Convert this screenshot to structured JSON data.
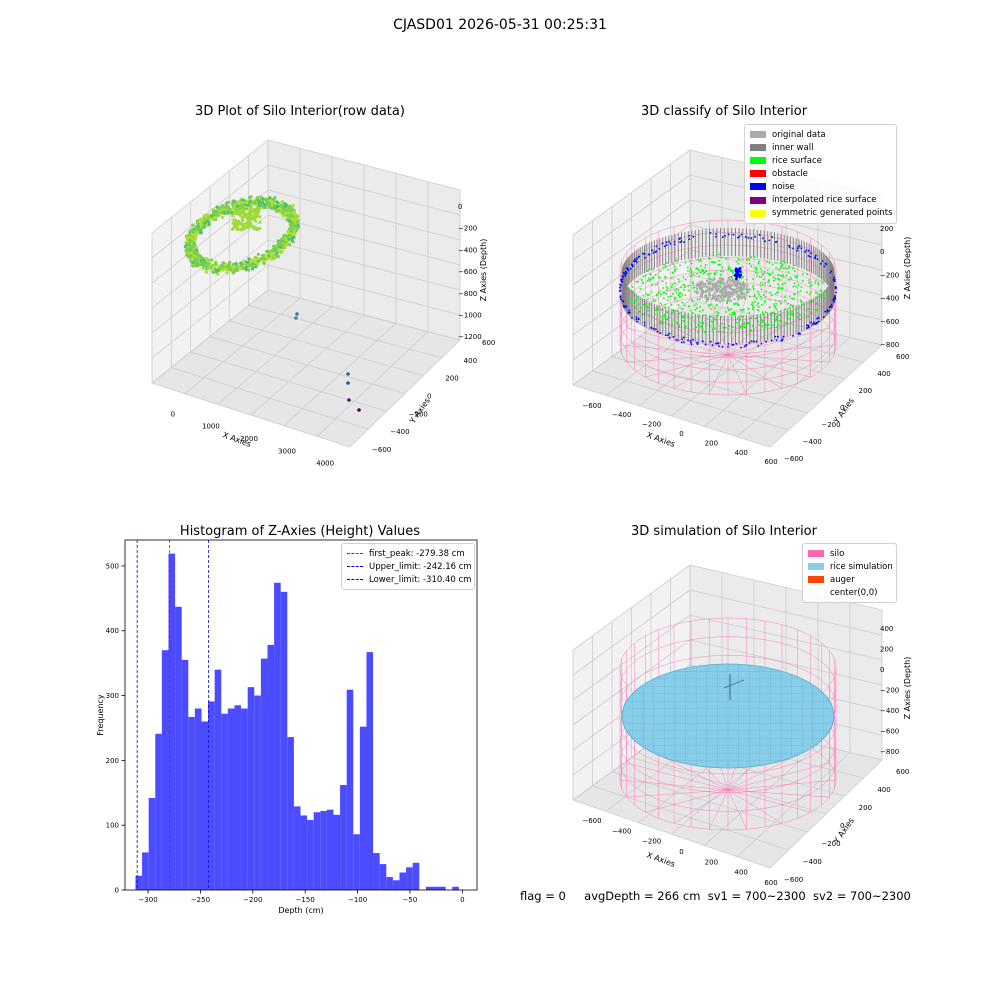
{
  "figure": {
    "suptitle": "CJASD01 2026-05-31 00:25:31",
    "status": {
      "flag": "flag = 0",
      "avg_depth": "avgDepth = 266 cm",
      "sv1": "sv1 = 700~2300",
      "sv2": "sv2 = 700~2300"
    }
  },
  "colors": {
    "histogram_bar": "#4b4bff",
    "first_peak_line": "#ff0000",
    "limit_line": "#0000cc",
    "silo_pink": "#ff69b4",
    "rice_sim": "#87ceeb",
    "auger": "#ff4500",
    "rice_surface": "#00ff00",
    "noise": "#0000ff",
    "original": "#aaaaaa",
    "inner_wall": "#808080"
  },
  "chart_data": [
    {
      "type": "scatter",
      "projection": "3d",
      "title": "3D Plot of Silo Interior(row data)",
      "xlabel": "X Axies",
      "ylabel": "Y Axies",
      "zlabel": "Z Axies (Depth)",
      "x_ticks": [
        "0",
        "1000",
        "2000",
        "3000",
        "4000"
      ],
      "y_ticks": [
        "600",
        "400",
        "200",
        "0",
        "−200",
        "−400",
        "−600"
      ],
      "z_ticks": [
        "0",
        "−200",
        "−400",
        "−600",
        "−800",
        "−1000",
        "−1200"
      ],
      "grid": true,
      "colormap": "viridis"
    },
    {
      "type": "scatter",
      "projection": "3d",
      "title": "3D classify of Silo Interior",
      "xlabel": "X Axies",
      "ylabel": "Y Axies",
      "zlabel": "Z Axies (Depth)",
      "x_ticks": [
        "−600",
        "−400",
        "−200",
        "0",
        "200",
        "400",
        "600"
      ],
      "y_ticks": [
        "600",
        "400",
        "200",
        "0",
        "−200",
        "−400",
        "−600"
      ],
      "z_ticks": [
        "200",
        "0",
        "−200",
        "−400",
        "−600",
        "−800"
      ],
      "legend": [
        {
          "name": "original data",
          "color": "#aaaaaa"
        },
        {
          "name": "inner wall",
          "color": "#808080"
        },
        {
          "name": "rice surface",
          "color": "#00ff00"
        },
        {
          "name": "obstacle",
          "color": "#ff0000"
        },
        {
          "name": "noise",
          "color": "#0000ff"
        },
        {
          "name": "interpolated rice surface",
          "color": "#800080"
        },
        {
          "name": "symmetric generated points",
          "color": "#ffff00"
        }
      ],
      "legend_loc": "upper right",
      "grid": true
    },
    {
      "type": "bar",
      "subtype": "histogram",
      "title": "Histogram of Z-Axies (Height) Values",
      "xlabel": "Depth (cm)",
      "ylabel": "Frequency",
      "xlim": [
        -322,
        14
      ],
      "ylim": [
        0,
        540
      ],
      "x_ticks": [
        -300,
        -250,
        -200,
        -150,
        -100,
        -50,
        0
      ],
      "x_tick_labels": [
        "−300",
        "−250",
        "−200",
        "−150",
        "−100",
        "−50",
        "0"
      ],
      "y_ticks": [
        0,
        100,
        200,
        300,
        400,
        500
      ],
      "bin_start": -312,
      "bin_width": 6.3,
      "values": [
        22,
        58,
        142,
        241,
        370,
        519,
        437,
        355,
        267,
        280,
        260,
        291,
        340,
        272,
        280,
        285,
        280,
        313,
        300,
        357,
        378,
        474,
        460,
        236,
        129,
        115,
        108,
        120,
        122,
        124,
        116,
        162,
        309,
        86,
        252,
        367,
        57,
        40,
        20,
        15,
        27,
        35,
        42,
        0,
        5,
        5,
        5,
        0,
        5
      ],
      "vlines": [
        {
          "name": "first_peak: -279.38 cm",
          "x": -279.38,
          "color": "#ff0000"
        },
        {
          "name": "Upper_limit: -242.16 cm",
          "x": -242.16,
          "color": "#0000cc"
        },
        {
          "name": "Lower_limit: -310.40 cm",
          "x": -310.4,
          "color": "#0000cc"
        }
      ],
      "legend_loc": "upper right",
      "grid": false
    },
    {
      "type": "scatter",
      "projection": "3d",
      "title": "3D simulation of Silo Interior",
      "xlabel": "X Axies",
      "ylabel": "Y Axies",
      "zlabel": "Z Axies (Depth)",
      "x_ticks": [
        "−600",
        "−400",
        "−200",
        "0",
        "200",
        "400",
        "600"
      ],
      "y_ticks": [
        "600",
        "400",
        "200",
        "0",
        "−200",
        "−400",
        "−600"
      ],
      "z_ticks": [
        "400",
        "200",
        "0",
        "−200",
        "−400",
        "−600",
        "−800"
      ],
      "legend": [
        {
          "name": "silo",
          "color": "#ff69b4"
        },
        {
          "name": "rice simulation",
          "color": "#87ceeb"
        },
        {
          "name": "auger",
          "color": "#ff4500"
        },
        {
          "name": "center(0,0)",
          "color": ""
        }
      ],
      "legend_loc": "upper right",
      "grid": true
    }
  ]
}
